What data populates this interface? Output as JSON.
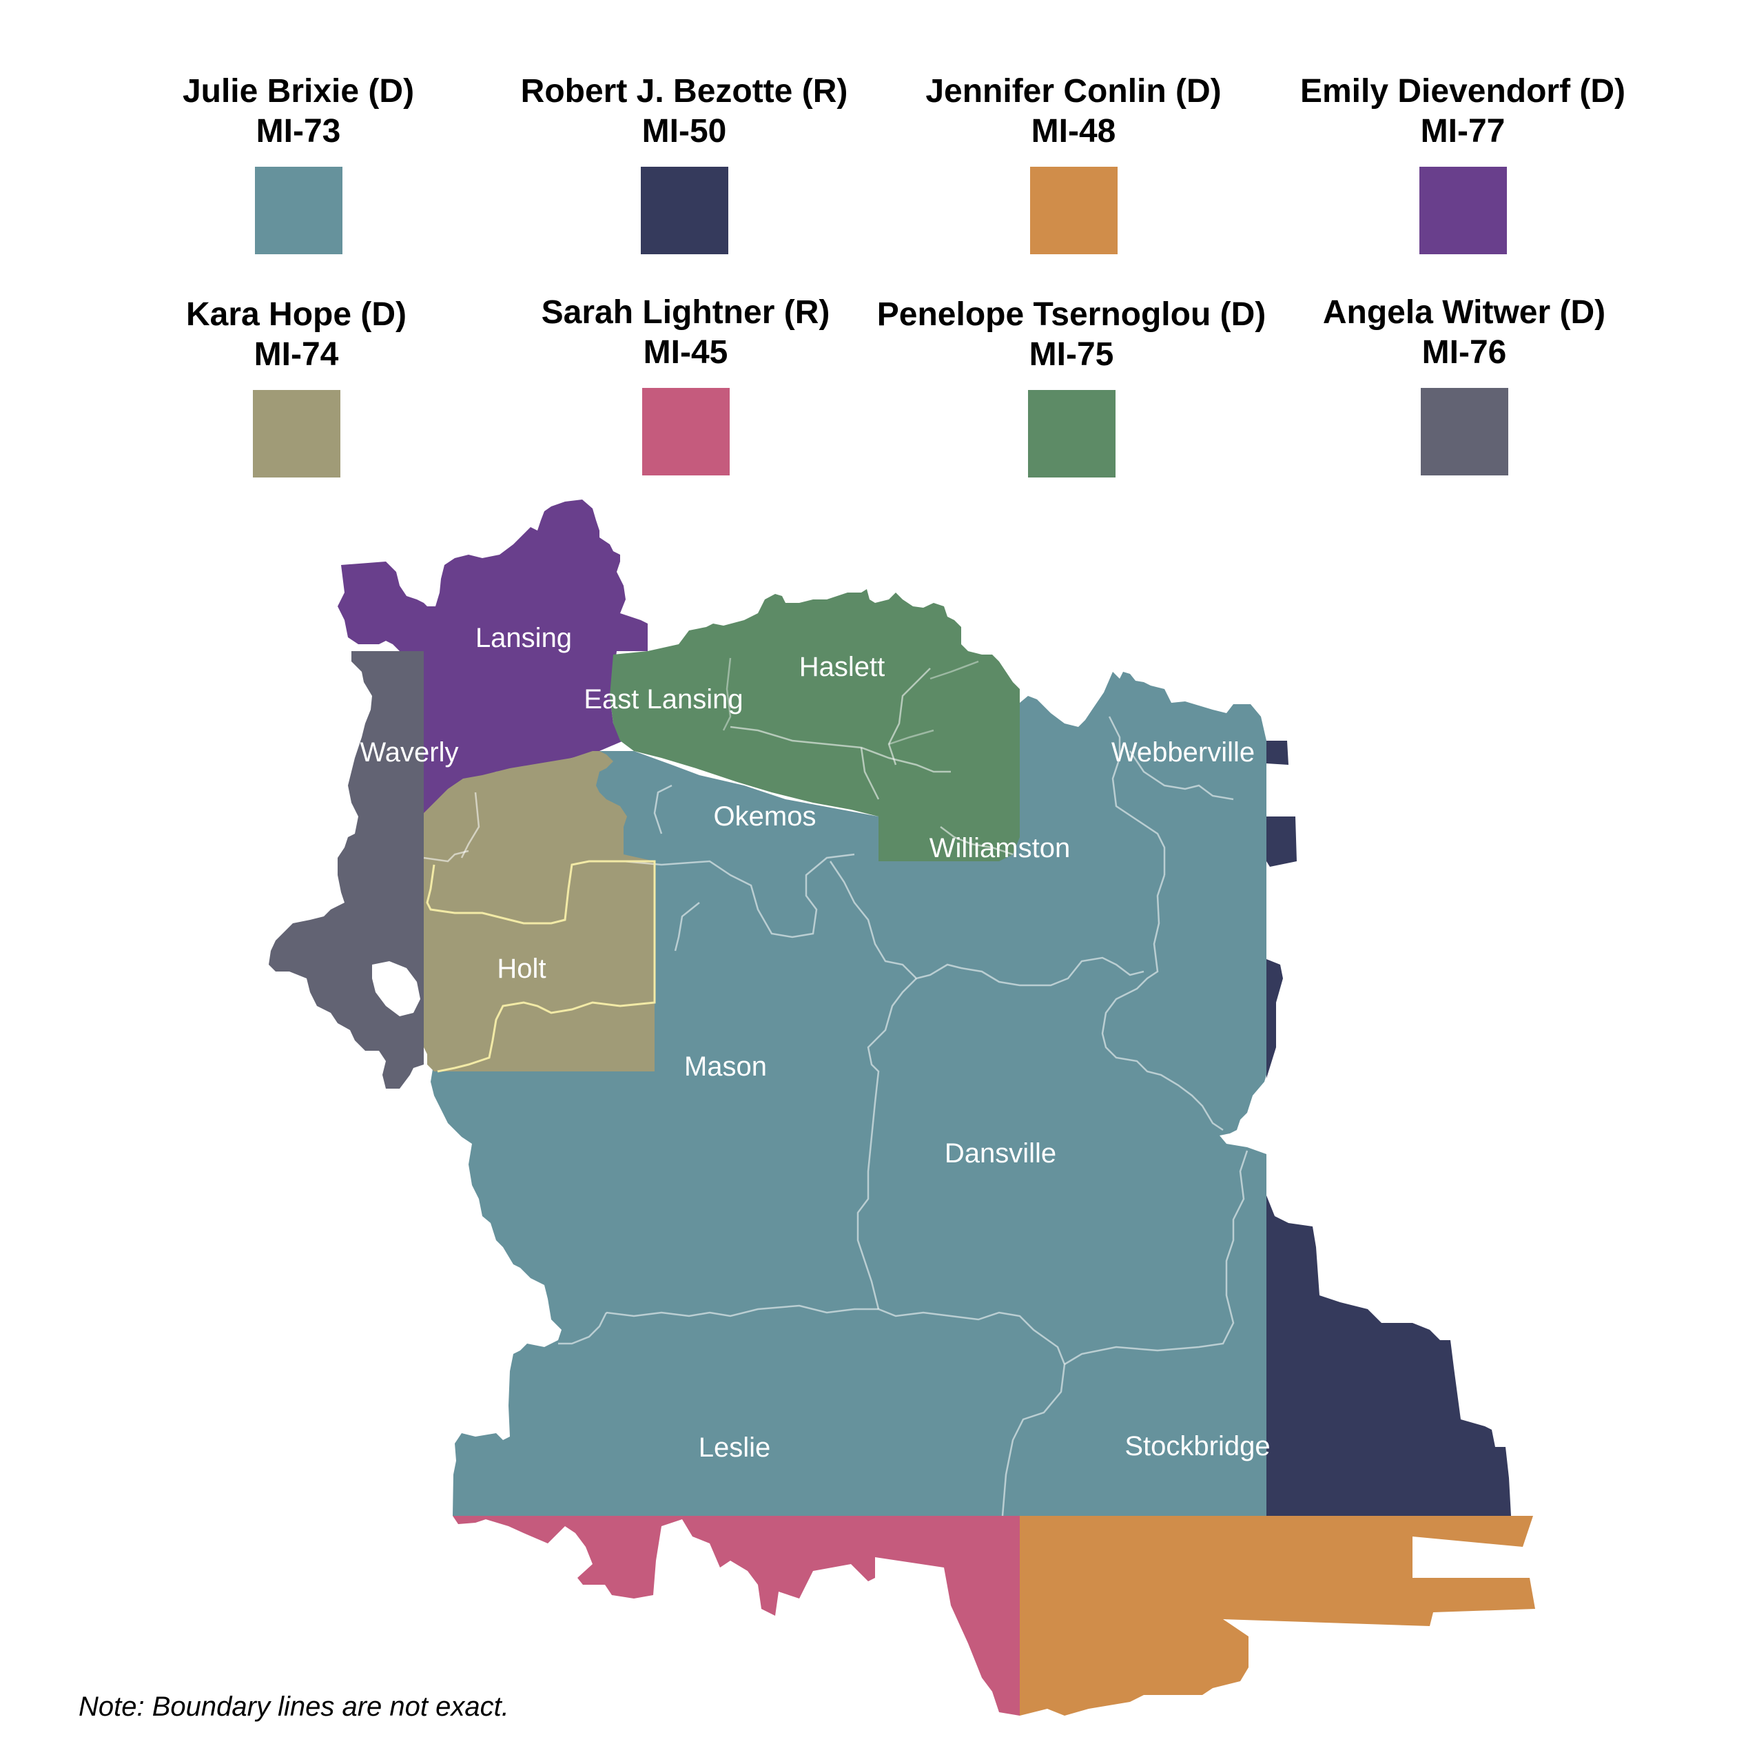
{
  "legend": [
    {
      "name": "Julie Brixie (D)",
      "district": "MI-73",
      "color": "#66929c"
    },
    {
      "name": "Robert J. Bezotte (R)",
      "district": "MI-50",
      "color": "#353a5c"
    },
    {
      "name": "Jennifer Conlin (D)",
      "district": "MI-48",
      "color": "#d08d4a"
    },
    {
      "name": "Emily Dievendorf (D)",
      "district": "MI-77",
      "color": "#693f8c"
    },
    {
      "name": "Kara Hope (D)",
      "district": "MI-74",
      "color": "#a09b77"
    },
    {
      "name": "Sarah Lightner (R)",
      "district": "MI-45",
      "color": "#c55b7d"
    },
    {
      "name": "Penelope Tsernoglou (D)",
      "district": "MI-75",
      "color": "#5d8b66"
    },
    {
      "name": "Angela Witwer (D)",
      "district": "MI-76",
      "color": "#626373"
    }
  ],
  "places": {
    "lansing": "Lansing",
    "east_lansing": "East Lansing",
    "haslett": "Haslett",
    "waverly": "Waverly",
    "webberville": "Webberville",
    "okemos": "Okemos",
    "williamston": "Williamston",
    "holt": "Holt",
    "mason": "Mason",
    "dansville": "Dansville",
    "leslie": "Leslie",
    "stockbridge": "Stockbridge"
  },
  "note": "Note: Boundary lines are not exact."
}
